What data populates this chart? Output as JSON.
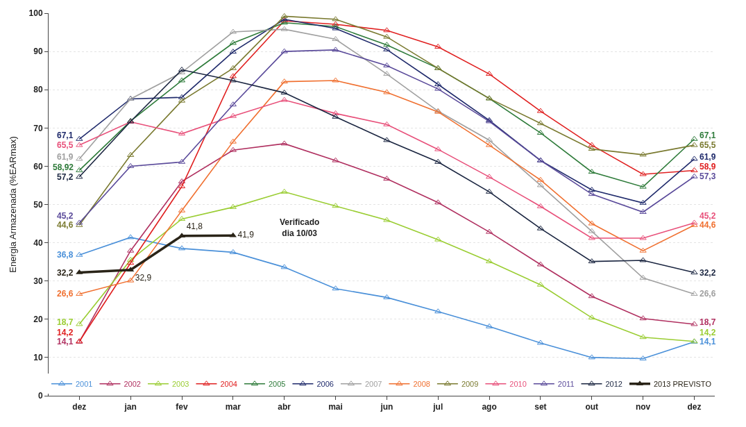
{
  "chart_data": {
    "type": "line",
    "ylabel": "Energia Armazenada (%EARmax)",
    "categories": [
      "dez",
      "jan",
      "fev",
      "mar",
      "abr",
      "mai",
      "jun",
      "jul",
      "ago",
      "set",
      "out",
      "nov",
      "dez"
    ],
    "ylim": [
      0,
      100
    ],
    "yticks": [
      0,
      10,
      20,
      30,
      40,
      50,
      60,
      70,
      80,
      90,
      100
    ],
    "grid": "y",
    "legend": "bottom",
    "marker": "triangle",
    "line_style": "solid",
    "annotations": [
      "Verificado dia 10/03"
    ],
    "series": [
      {
        "name": "2001",
        "color": "#4a90d9",
        "values": [
          36.8,
          41.4,
          38.5,
          37.5,
          33.6,
          28.0,
          25.7,
          22.0,
          18.1,
          13.8,
          10.0,
          9.7,
          14.1
        ],
        "value_labels": [
          "36,8",
          null,
          null,
          null,
          null,
          null,
          null,
          null,
          null,
          null,
          null,
          null,
          "14,1"
        ]
      },
      {
        "name": "2002",
        "color": "#b03060",
        "values": [
          14.1,
          37.9,
          56.0,
          64.2,
          65.9,
          61.5,
          56.7,
          50.5,
          42.8,
          34.3,
          26.0,
          20.2,
          18.7
        ],
        "value_labels": [
          "14,1",
          null,
          null,
          null,
          null,
          null,
          null,
          null,
          null,
          null,
          null,
          null,
          "18,7"
        ]
      },
      {
        "name": "2003",
        "color": "#9acd32",
        "values": [
          18.7,
          35.5,
          46.2,
          49.3,
          53.3,
          49.6,
          45.9,
          40.8,
          35.1,
          29.0,
          20.4,
          15.3,
          14.2
        ],
        "value_labels": [
          "18,7",
          null,
          null,
          null,
          null,
          null,
          null,
          null,
          null,
          null,
          null,
          null,
          "14,2"
        ]
      },
      {
        "name": "2004",
        "color": "#e02020",
        "values": [
          14.2,
          34.7,
          54.7,
          83.5,
          98.0,
          97.1,
          95.5,
          91.2,
          84.1,
          74.4,
          65.5,
          57.9,
          58.9
        ],
        "value_labels": [
          "14,2",
          null,
          null,
          null,
          null,
          null,
          null,
          null,
          null,
          null,
          null,
          null,
          "58,9"
        ]
      },
      {
        "name": "2005",
        "color": "#2e7b3a",
        "values": [
          58.92,
          71.8,
          82.4,
          92.2,
          97.5,
          96.5,
          91.7,
          85.6,
          77.7,
          68.7,
          58.5,
          54.6,
          67.1
        ],
        "value_labels": [
          "58,92",
          null,
          null,
          null,
          null,
          null,
          null,
          null,
          null,
          null,
          null,
          null,
          "67,1"
        ]
      },
      {
        "name": "2006",
        "color": "#1f2a6b",
        "values": [
          67.1,
          77.6,
          78.0,
          89.9,
          98.4,
          96.0,
          90.5,
          81.4,
          72.0,
          61.5,
          53.8,
          50.4,
          61.9
        ],
        "value_labels": [
          "67,1",
          null,
          null,
          null,
          null,
          null,
          null,
          null,
          null,
          null,
          null,
          null,
          "61,9"
        ]
      },
      {
        "name": "2007",
        "color": "#a0a0a0",
        "values": [
          61.9,
          77.6,
          84.5,
          95.1,
          95.8,
          93.2,
          84.1,
          74.4,
          66.8,
          55.0,
          43.0,
          30.8,
          26.6
        ],
        "value_labels": [
          "61,9",
          null,
          null,
          null,
          null,
          null,
          null,
          null,
          null,
          null,
          null,
          null,
          "26,6"
        ]
      },
      {
        "name": "2008",
        "color": "#f07030",
        "values": [
          26.6,
          30.1,
          48.4,
          66.4,
          82.1,
          82.4,
          79.3,
          74.2,
          65.5,
          56.4,
          45.0,
          37.9,
          44.6
        ],
        "value_labels": [
          "26,6",
          null,
          null,
          null,
          null,
          null,
          null,
          null,
          null,
          null,
          null,
          null,
          "44,6"
        ]
      },
      {
        "name": "2009",
        "color": "#7a7a30",
        "values": [
          44.6,
          62.9,
          77.1,
          85.6,
          99.2,
          98.4,
          93.8,
          85.6,
          77.7,
          71.2,
          64.5,
          63.0,
          65.5
        ],
        "value_labels": [
          "44,6",
          null,
          null,
          null,
          null,
          null,
          null,
          null,
          null,
          null,
          null,
          null,
          "65,5"
        ]
      },
      {
        "name": "2010",
        "color": "#e8507a",
        "values": [
          65.5,
          71.6,
          68.5,
          73.1,
          77.3,
          73.8,
          70.9,
          64.4,
          57.2,
          49.5,
          41.2,
          41.2,
          45.2
        ],
        "value_labels": [
          "65,5",
          null,
          null,
          null,
          null,
          null,
          null,
          null,
          null,
          null,
          null,
          null,
          "45,2"
        ]
      },
      {
        "name": "2011",
        "color": "#5a4a9a",
        "values": [
          45.2,
          60.0,
          61.1,
          76.1,
          90.0,
          90.4,
          86.3,
          80.2,
          71.7,
          61.5,
          52.7,
          48.0,
          57.3
        ],
        "value_labels": [
          "45,2",
          null,
          null,
          null,
          null,
          null,
          null,
          null,
          null,
          null,
          null,
          null,
          "57,3"
        ]
      },
      {
        "name": "2012",
        "color": "#1a2540",
        "values": [
          57.2,
          71.7,
          85.2,
          82.4,
          79.2,
          72.9,
          66.8,
          61.1,
          53.3,
          43.7,
          35.1,
          35.4,
          32.2
        ],
        "value_labels": [
          "57,2",
          null,
          null,
          null,
          null,
          null,
          null,
          null,
          null,
          null,
          null,
          null,
          "32,2"
        ]
      },
      {
        "name": "2013 PREVISTO",
        "color": "#2a2418",
        "values": [
          32.2,
          32.9,
          41.8,
          41.9,
          null,
          null,
          null,
          null,
          null,
          null,
          null,
          null,
          null
        ],
        "value_labels": [
          "32,2",
          "32,9",
          "41,8",
          "41,9",
          null,
          null,
          null,
          null,
          null,
          null,
          null,
          null,
          null
        ]
      }
    ]
  }
}
